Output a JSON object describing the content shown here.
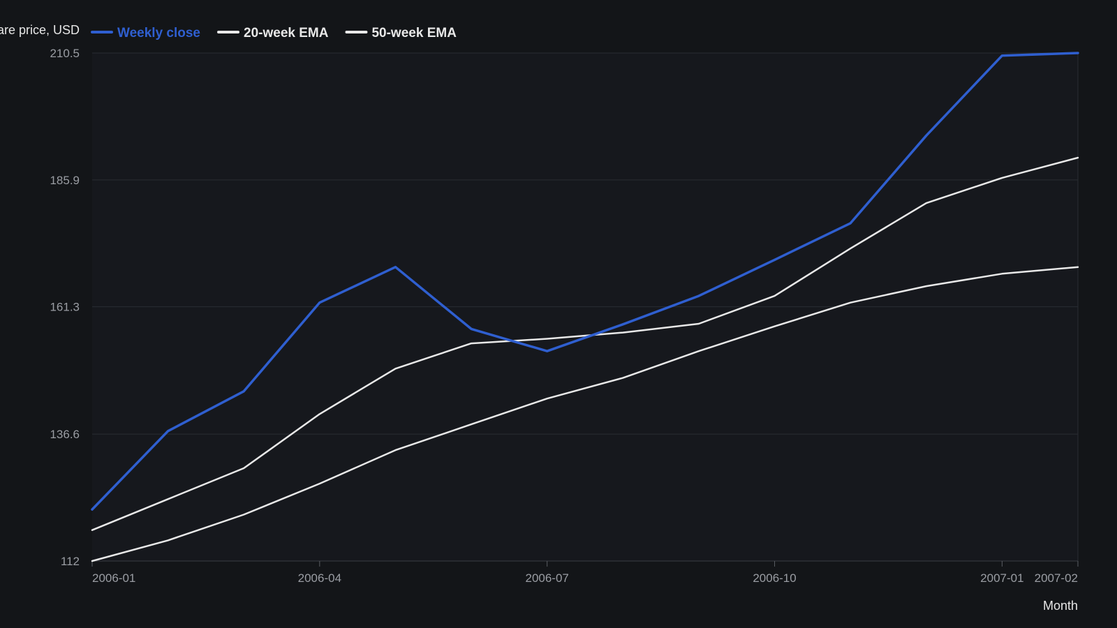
{
  "chart_data": {
    "type": "line",
    "title": "",
    "ylabel": "Share price, USD",
    "xlabel": "Month",
    "ylim": [
      112,
      210.5
    ],
    "yticks": [
      112,
      136.6,
      161.3,
      185.9,
      210.5
    ],
    "ytick_labels": [
      "112",
      "136.6",
      "161.3",
      "185.9",
      "210.5"
    ],
    "x": [
      "2006-01",
      "2006-02",
      "2006-03",
      "2006-04",
      "2006-05",
      "2006-06",
      "2006-07",
      "2006-08",
      "2006-09",
      "2006-10",
      "2006-11",
      "2006-12",
      "2007-01",
      "2007-02"
    ],
    "xtick_labels": [
      "2006-01",
      "2006-04",
      "2006-07",
      "2006-10",
      "2007-01",
      "2007-02"
    ],
    "grid": true,
    "legend_position": "top",
    "series": [
      {
        "name": "Weekly close",
        "color": "#2f5fd0",
        "values": [
          122.0,
          137.2,
          144.9,
          162.1,
          169.0,
          157.0,
          152.7,
          157.9,
          163.4,
          170.4,
          177.5,
          194.5,
          210.0,
          210.5
        ]
      },
      {
        "name": "20-week EMA",
        "color": "#e8e8e8",
        "values": [
          118.0,
          124.0,
          130.0,
          140.5,
          149.3,
          154.2,
          155.1,
          156.3,
          158.0,
          163.4,
          172.6,
          181.4,
          186.3,
          190.2
        ]
      },
      {
        "name": "50-week EMA",
        "color": "#e8e8e8",
        "values": [
          112.0,
          116.0,
          121.0,
          127.0,
          133.5,
          138.5,
          143.5,
          147.5,
          152.7,
          157.5,
          162.1,
          165.3,
          167.7,
          169.0
        ]
      }
    ]
  }
}
